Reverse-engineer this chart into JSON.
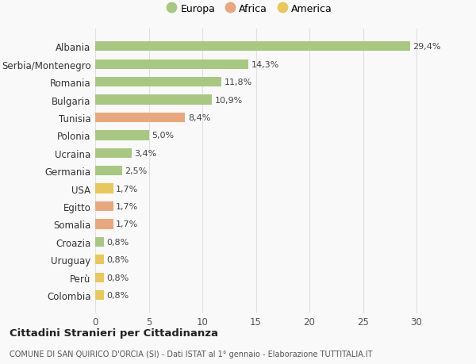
{
  "categories": [
    "Albania",
    "Serbia/Montenegro",
    "Romania",
    "Bulgaria",
    "Tunisia",
    "Polonia",
    "Ucraina",
    "Germania",
    "USA",
    "Egitto",
    "Somalia",
    "Croazia",
    "Uruguay",
    "Perù",
    "Colombia"
  ],
  "values": [
    29.4,
    14.3,
    11.8,
    10.9,
    8.4,
    5.0,
    3.4,
    2.5,
    1.7,
    1.7,
    1.7,
    0.8,
    0.8,
    0.8,
    0.8
  ],
  "labels": [
    "29,4%",
    "14,3%",
    "11,8%",
    "10,9%",
    "8,4%",
    "5,0%",
    "3,4%",
    "2,5%",
    "1,7%",
    "1,7%",
    "1,7%",
    "0,8%",
    "0,8%",
    "0,8%",
    "0,8%"
  ],
  "colors": [
    "#a8c882",
    "#a8c882",
    "#a8c882",
    "#a8c882",
    "#e8a87c",
    "#a8c882",
    "#a8c882",
    "#a8c882",
    "#e8c85a",
    "#e8a87c",
    "#e8a87c",
    "#a8c882",
    "#e8c85a",
    "#e8c85a",
    "#e8c85a"
  ],
  "legend_labels": [
    "Europa",
    "Africa",
    "America"
  ],
  "legend_colors": [
    "#a8c882",
    "#e8a87c",
    "#e8c85a"
  ],
  "title": "Cittadini Stranieri per Cittadinanza",
  "subtitle": "COMUNE DI SAN QUIRICO D'ORCIA (SI) - Dati ISTAT al 1° gennaio - Elaborazione TUTTITALIA.IT",
  "xlim": [
    0,
    32
  ],
  "xticks": [
    0,
    5,
    10,
    15,
    20,
    25,
    30
  ],
  "background_color": "#f9f9f9",
  "bar_height": 0.55,
  "grid_color": "#e0e0e0",
  "label_fontsize": 8.0,
  "ytick_fontsize": 8.5,
  "xtick_fontsize": 8.5
}
